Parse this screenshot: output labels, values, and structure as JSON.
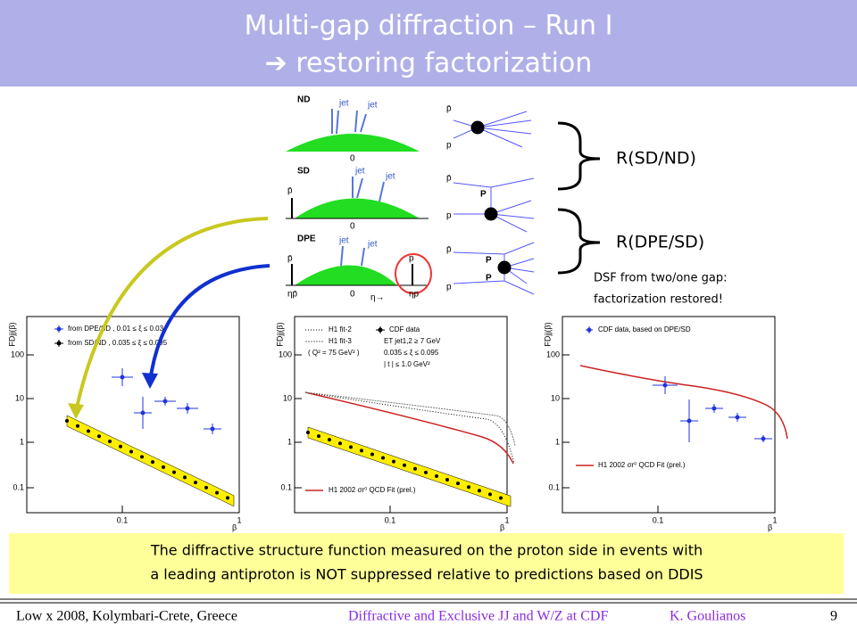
{
  "header": {
    "title_line1": "Multi-gap diffraction – Run I",
    "title_line2": "➔ restoring factorization"
  },
  "diagrams": {
    "nd": "ND",
    "sd": "SD",
    "dpe": "DPE",
    "jet": "jet",
    "zero": "0",
    "pbar": "p̄",
    "p": "p",
    "eta_pbar": "ηp̄",
    "eta_p": "ηp",
    "eta_arrow": "η→",
    "pomeron": "P"
  },
  "ratios": {
    "sd_nd": "R(SD/ND)",
    "dpe_sd": "R(DPE/SD)",
    "note_line1": "DSF from two/one gap:",
    "note_line2": "factorization restored!"
  },
  "plots": {
    "yticks": [
      "100",
      "10",
      "1",
      "0.1"
    ],
    "xticks": [
      "0.1",
      "1"
    ],
    "xlabel": "β",
    "ylabel": "FDjj(β)",
    "left": {
      "legend": [
        "from DPE/SD ,  0.01 ≤ ξ ≤ 0.03",
        "from SD/ND ,  0.035 ≤ ξ ≤ 0.095"
      ]
    },
    "middle": {
      "legend": [
        "H1 fit-2",
        "H1 fit-3",
        "( Q² = 75 GeV² )",
        "CDF data",
        "ET jet1,2 ≥ 7 GeV",
        "0.035 ≤ ξ ≤ 0.095",
        "| t | ≤ 1.0 GeV²"
      ],
      "fit": "H1 2002 σr⁰ QCD Fit (prel.)"
    },
    "right": {
      "legend": [
        "CDF data, based on DPE/SD"
      ],
      "fit": "H1 2002 σr⁰ QCD Fit (prel.)"
    }
  },
  "conclusion": {
    "line1": "The diffractive structure function measured on the proton side in events with",
    "line2": "a leading antiproton is NOT suppressed relative to predictions  based on DDIS"
  },
  "footer": {
    "venue": "Low x 2008, Kolymbari-Crete, Greece",
    "talk": "Diffractive and Exclusive JJ and W/Z at CDF",
    "author": "K.  Goulianos",
    "page": "9"
  }
}
